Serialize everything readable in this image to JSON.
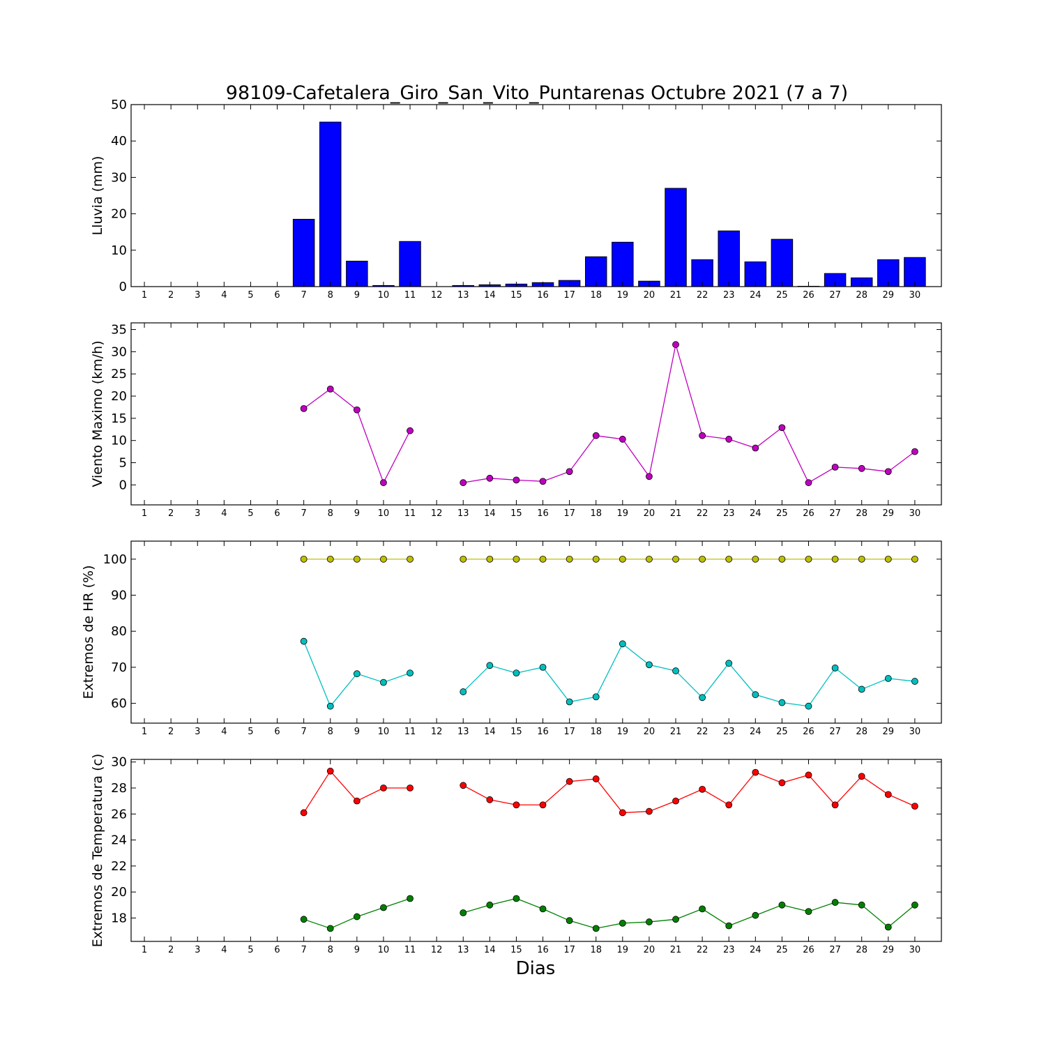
{
  "title": "98109-Cafetalera_Giro_San_Vito_Puntarenas Octubre 2021  (7 a 7)",
  "xlabel": "Dias",
  "days": [
    1,
    2,
    3,
    4,
    5,
    6,
    7,
    8,
    9,
    10,
    11,
    12,
    13,
    14,
    15,
    16,
    17,
    18,
    19,
    20,
    21,
    22,
    23,
    24,
    25,
    26,
    27,
    28,
    29,
    30
  ],
  "chart_data": [
    {
      "type": "bar",
      "ylabel": "Lluvia (mm)",
      "ylim": [
        0,
        50
      ],
      "yticks": [
        0,
        10,
        20,
        30,
        40,
        50
      ],
      "categories": [
        1,
        2,
        3,
        4,
        5,
        6,
        7,
        8,
        9,
        10,
        11,
        12,
        13,
        14,
        15,
        16,
        17,
        18,
        19,
        20,
        21,
        22,
        23,
        24,
        25,
        26,
        27,
        28,
        29,
        30
      ],
      "series": [
        {
          "color": "#0000ff",
          "values": [
            0,
            0,
            0,
            0,
            0,
            0,
            18.5,
            45.2,
            7.0,
            0.3,
            12.4,
            0,
            0.3,
            0.5,
            0.7,
            1.1,
            1.7,
            8.2,
            12.2,
            1.5,
            27.0,
            7.4,
            15.3,
            6.8,
            13.0,
            0.1,
            3.6,
            2.4,
            7.4,
            8.0
          ]
        }
      ]
    },
    {
      "type": "line",
      "ylabel": "Viento Maximo (km/h)",
      "ylim": [
        -4.5,
        36.5
      ],
      "yticks": [
        0,
        5,
        10,
        15,
        20,
        25,
        30,
        35
      ],
      "x": [
        1,
        2,
        3,
        4,
        5,
        6,
        7,
        8,
        9,
        10,
        11,
        12,
        13,
        14,
        15,
        16,
        17,
        18,
        19,
        20,
        21,
        22,
        23,
        24,
        25,
        26,
        27,
        28,
        29,
        30
      ],
      "series": [
        {
          "color": "#bf00bf",
          "values": [
            null,
            null,
            null,
            null,
            null,
            null,
            17.2,
            21.6,
            16.9,
            0.5,
            12.2,
            null,
            0.5,
            1.5,
            1.1,
            0.8,
            3.0,
            11.1,
            10.3,
            1.9,
            31.6,
            11.1,
            10.3,
            8.3,
            12.9,
            0.5,
            4.0,
            3.7,
            3.0,
            7.5
          ]
        }
      ]
    },
    {
      "type": "line",
      "ylabel": "Extremos de HR (%)",
      "ylim": [
        54.5,
        105
      ],
      "yticks": [
        60,
        70,
        80,
        90,
        100
      ],
      "x": [
        1,
        2,
        3,
        4,
        5,
        6,
        7,
        8,
        9,
        10,
        11,
        12,
        13,
        14,
        15,
        16,
        17,
        18,
        19,
        20,
        21,
        22,
        23,
        24,
        25,
        26,
        27,
        28,
        29,
        30
      ],
      "series": [
        {
          "color": "#bfbf00",
          "values": [
            null,
            null,
            null,
            null,
            null,
            null,
            100,
            100,
            100,
            100,
            100,
            null,
            100,
            100,
            100,
            100,
            100,
            100,
            100,
            100,
            100,
            100,
            100,
            100,
            100,
            100,
            100,
            100,
            100,
            100
          ]
        },
        {
          "color": "#00bfbf",
          "values": [
            null,
            null,
            null,
            null,
            null,
            null,
            77.2,
            59.2,
            68.2,
            65.8,
            68.4,
            null,
            63.2,
            70.5,
            68.4,
            70.0,
            60.4,
            61.8,
            76.5,
            70.7,
            69.0,
            61.6,
            71.1,
            62.4,
            60.2,
            59.2,
            69.8,
            63.9,
            66.9,
            66.1
          ]
        }
      ]
    },
    {
      "type": "line",
      "ylabel": "Extremos de Temperatura (c)",
      "ylim": [
        16.2,
        30.2
      ],
      "yticks": [
        18,
        20,
        22,
        24,
        26,
        28,
        30
      ],
      "x": [
        1,
        2,
        3,
        4,
        5,
        6,
        7,
        8,
        9,
        10,
        11,
        12,
        13,
        14,
        15,
        16,
        17,
        18,
        19,
        20,
        21,
        22,
        23,
        24,
        25,
        26,
        27,
        28,
        29,
        30
      ],
      "series": [
        {
          "color": "#ff0000",
          "values": [
            null,
            null,
            null,
            null,
            null,
            null,
            26.1,
            29.3,
            27.0,
            28.0,
            28.0,
            null,
            28.2,
            27.1,
            26.7,
            26.7,
            28.5,
            28.7,
            26.1,
            26.2,
            27.0,
            27.9,
            26.7,
            29.2,
            28.4,
            29.0,
            26.7,
            28.9,
            27.5,
            26.6
          ]
        },
        {
          "color": "#008000",
          "values": [
            null,
            null,
            null,
            null,
            null,
            null,
            17.9,
            17.2,
            18.1,
            18.8,
            19.5,
            null,
            18.4,
            19.0,
            19.5,
            18.7,
            17.8,
            17.2,
            17.6,
            17.7,
            17.9,
            18.7,
            17.4,
            18.2,
            19.0,
            18.5,
            19.2,
            19.0,
            17.3,
            19.0
          ]
        }
      ]
    }
  ]
}
